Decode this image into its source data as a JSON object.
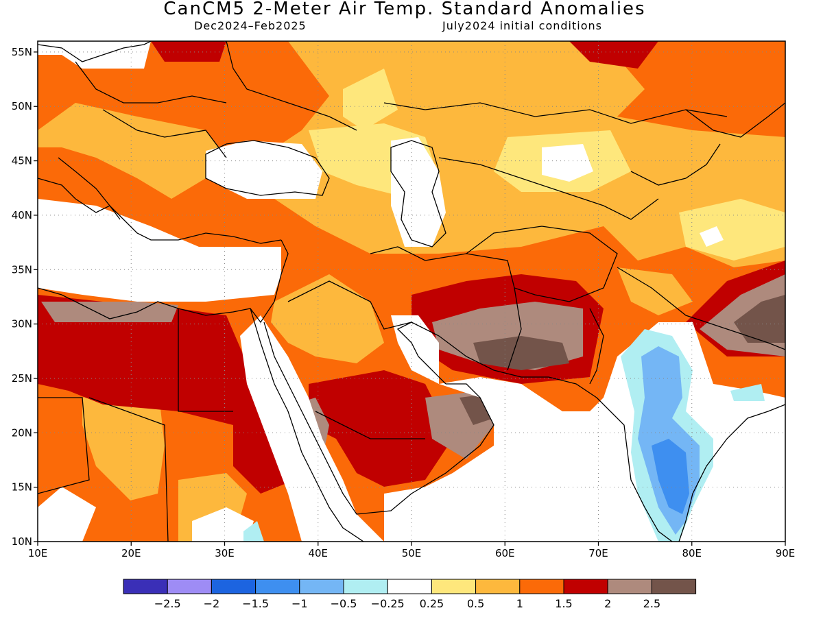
{
  "title": "CanCM5 2-Meter Air Temp. Standard Anomalies",
  "subtitle_left": "Dec2024–Feb2025",
  "subtitle_right": "July2024 initial conditions",
  "map": {
    "lon_range": [
      10,
      90
    ],
    "lat_range": [
      10,
      56
    ],
    "lon_ticks": [
      "10E",
      "20E",
      "30E",
      "40E",
      "50E",
      "60E",
      "70E",
      "80E",
      "90E"
    ],
    "lat_ticks": [
      "10N",
      "15N",
      "20N",
      "25N",
      "30N",
      "35N",
      "40N",
      "45N",
      "50N",
      "55N"
    ],
    "grid": true
  },
  "legend": {
    "colors": [
      "#3a2fb7",
      "#9e8cf5",
      "#1c64e0",
      "#3e8ff0",
      "#74b6f5",
      "#b0eef2",
      "#ffffff",
      "#fee77c",
      "#fdb83d",
      "#fb6a08",
      "#c00000",
      "#ae8a7d",
      "#73544a"
    ],
    "labels": [
      "−2.5",
      "−2",
      "−1.5",
      "−1",
      "−0.5",
      "−0.25",
      "0.25",
      "0.5",
      "1",
      "1.5",
      "2",
      "2.5"
    ]
  }
}
